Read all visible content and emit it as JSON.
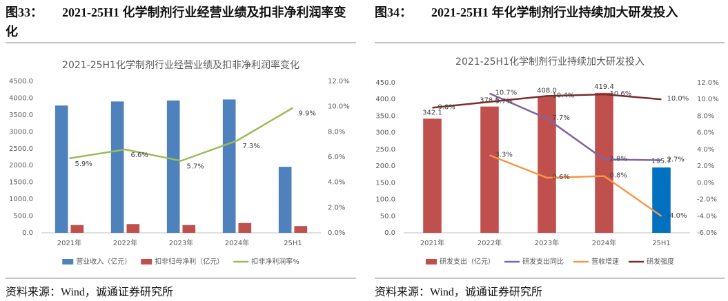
{
  "chart_data": [
    {
      "type": "bar-line",
      "figure_label": "图33：",
      "figure_title": "2021-25H1 化学制剂行业经营业绩及扣非净利润率变化",
      "title": "2021-25H1化学制剂行业经营业绩及扣非净利润率变化",
      "source": "资料来源：Wind，诚通证券研究所",
      "categories": [
        "2021年",
        "2022年",
        "2023年",
        "2024年",
        "25H1"
      ],
      "series": [
        {
          "name": "营业收入（亿元）",
          "type": "bar",
          "color": "#4f81bd",
          "values": [
            3780,
            3900,
            3930,
            3960,
            1960
          ]
        },
        {
          "name": "扣非归母净利（亿元）",
          "type": "bar",
          "color": "#c0504d",
          "values": [
            230,
            260,
            230,
            290,
            200
          ]
        },
        {
          "name": "扣非净利润率%",
          "type": "line",
          "axis": "y2",
          "color": "#9bbb59",
          "values": [
            5.9,
            6.6,
            5.7,
            7.3,
            9.9
          ],
          "value_labels": [
            "5.9%",
            "6.6%",
            "5.7%",
            "7.3%",
            "9.9%"
          ]
        }
      ],
      "ylim": [
        0,
        4500
      ],
      "yticks": [
        {
          "value": 0,
          "label": "0.0"
        },
        {
          "value": 500,
          "label": "500.0"
        },
        {
          "value": 1000,
          "label": "1000.0"
        },
        {
          "value": 1500,
          "label": "1500.0"
        },
        {
          "value": 2000,
          "label": "2000.0"
        },
        {
          "value": 2500,
          "label": "2500.0"
        },
        {
          "value": 3000,
          "label": "3000.0"
        },
        {
          "value": 3500,
          "label": "3500.0"
        },
        {
          "value": 4000,
          "label": "4000.0"
        },
        {
          "value": 4500,
          "label": "4500.0"
        }
      ],
      "y2lim": [
        0,
        12
      ],
      "y2ticks": [
        {
          "value": 0,
          "label": "0.0%"
        },
        {
          "value": 2,
          "label": "2.0%"
        },
        {
          "value": 4,
          "label": "4.0%"
        },
        {
          "value": 6,
          "label": "6.0%"
        },
        {
          "value": 8,
          "label": "8.0%"
        },
        {
          "value": 10,
          "label": "10.0%"
        },
        {
          "value": 12,
          "label": "12.0%"
        }
      ],
      "grid": false,
      "legend": "bottom"
    },
    {
      "type": "bar-line",
      "figure_label": "图34：",
      "figure_title": "2021-25H1 年化学制剂行业持续加大研发投入",
      "title": "2021-25H1化学制剂行业持续加大研发投入",
      "source": "资料来源：Wind，诚通证券研究所",
      "categories": [
        "2021年",
        "2022年",
        "2023年",
        "2024年",
        "25H1"
      ],
      "series": [
        {
          "name": "研发支出（亿元）",
          "type": "bar",
          "color": "#c0504d",
          "colors": [
            "#c0504d",
            "#c0504d",
            "#c0504d",
            "#c0504d",
            "#0070c0"
          ],
          "values": [
            342.1,
            378.5,
            408.0,
            419.4,
            195.7
          ],
          "value_labels": [
            "342.1",
            "378.5",
            "408.0",
            "419.4",
            "195.7"
          ]
        },
        {
          "name": "研发支出同比",
          "type": "line",
          "axis": "y2",
          "color": "#8064a2",
          "values": [
            null,
            10.7,
            7.7,
            2.8,
            2.7
          ],
          "value_labels": [
            null,
            "10.7%",
            "7.7%",
            "2.8%",
            "2.7%"
          ]
        },
        {
          "name": "营收增速",
          "type": "line",
          "axis": "y2",
          "color": "#f79646",
          "values": [
            null,
            3.3,
            0.6,
            0.8,
            -4.0
          ],
          "value_labels": [
            null,
            "3.3%",
            "0.6%",
            "0.8%",
            "-4.0%"
          ]
        },
        {
          "name": "研发强度",
          "type": "line",
          "axis": "y2",
          "color": "#7b2c2c",
          "values": [
            9.0,
            9.7,
            10.4,
            10.6,
            10.0
          ],
          "value_labels": [
            "9.0%",
            "9.7%",
            "10.4%",
            "10.6%",
            "10.0%"
          ]
        }
      ],
      "ylim": [
        0,
        450
      ],
      "yticks": [
        {
          "value": 0,
          "label": "0.0"
        },
        {
          "value": 50,
          "label": "50.0"
        },
        {
          "value": 100,
          "label": "100.0"
        },
        {
          "value": 150,
          "label": "150.0"
        },
        {
          "value": 200,
          "label": "200.0"
        },
        {
          "value": 250,
          "label": "250.0"
        },
        {
          "value": 300,
          "label": "300.0"
        },
        {
          "value": 350,
          "label": "350.0"
        },
        {
          "value": 400,
          "label": "400.0"
        },
        {
          "value": 450,
          "label": "450.0"
        }
      ],
      "y2lim": [
        -6,
        12
      ],
      "y2ticks": [
        {
          "value": -6,
          "label": "-6.0%"
        },
        {
          "value": -4,
          "label": "-4.0%"
        },
        {
          "value": -2,
          "label": "-2.0%"
        },
        {
          "value": 0,
          "label": "0.0%"
        },
        {
          "value": 2,
          "label": "2.0%"
        },
        {
          "value": 4,
          "label": "4.0%"
        },
        {
          "value": 6,
          "label": "6.0%"
        },
        {
          "value": 8,
          "label": "8.0%"
        },
        {
          "value": 10,
          "label": "10.0%"
        },
        {
          "value": 12,
          "label": "12.0%"
        }
      ],
      "grid": false,
      "legend": "bottom"
    }
  ]
}
